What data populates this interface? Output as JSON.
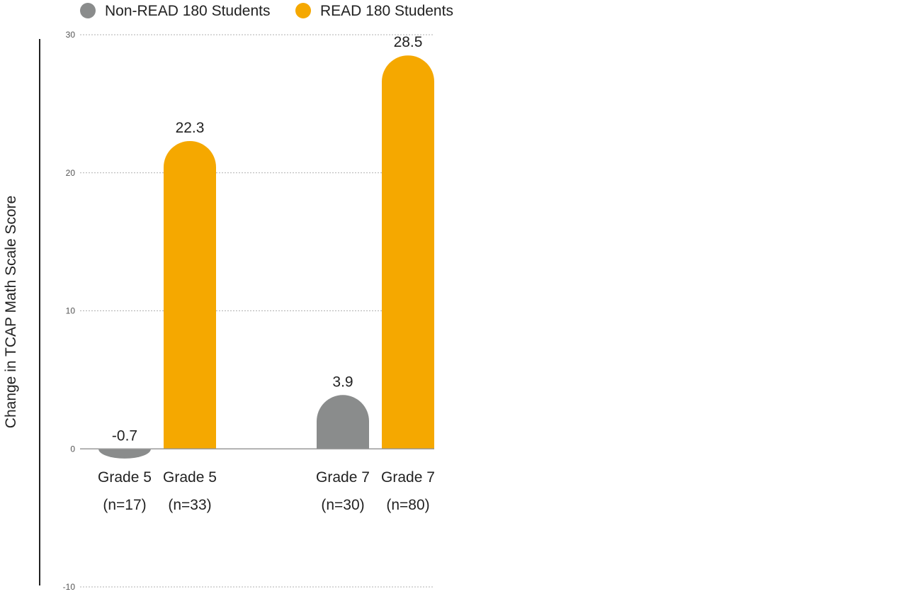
{
  "chart_data": {
    "type": "bar",
    "ylabel": "Change in TCAP Math Scale Score",
    "ylim": [
      -10,
      30
    ],
    "yticks": [
      30,
      20,
      10,
      0,
      -10
    ],
    "grid": true,
    "legend_position": "top-left",
    "series": [
      {
        "name": "Non-READ 180 Students",
        "color": "#8a8c8c"
      },
      {
        "name": "READ 180 Students",
        "color": "#f5a800"
      }
    ],
    "bars": [
      {
        "series": 0,
        "group": 0,
        "value": -0.7,
        "value_label": "-0.7",
        "label_line1": "Grade 5",
        "label_line2": "(n=17)"
      },
      {
        "series": 1,
        "group": 0,
        "value": 22.3,
        "value_label": "22.3",
        "label_line1": "Grade 5",
        "label_line2": "(n=33)"
      },
      {
        "series": 0,
        "group": 1,
        "value": 3.9,
        "value_label": "3.9",
        "label_line1": "Grade 7",
        "label_line2": "(n=30)"
      },
      {
        "series": 1,
        "group": 1,
        "value": 28.5,
        "value_label": "28.5",
        "label_line1": "Grade 7",
        "label_line2": "(n=80)"
      }
    ]
  }
}
